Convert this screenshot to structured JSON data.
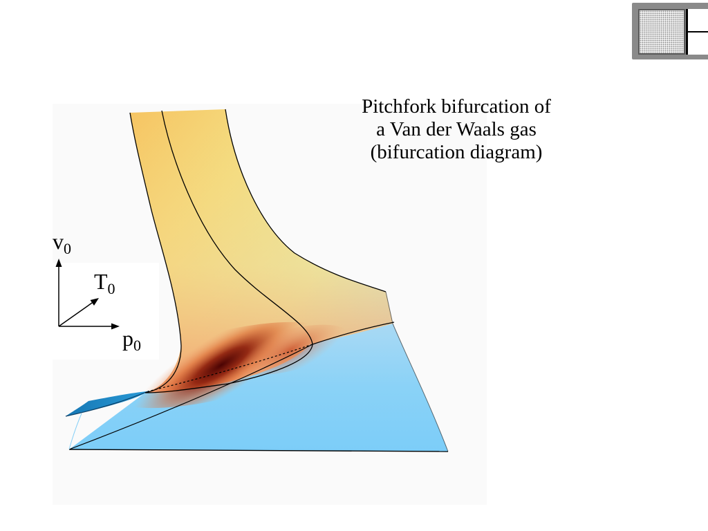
{
  "slide": {
    "title_lines": [
      "Pitchfork bifurcation of",
      "a Van der Waals gas",
      "(bifurcation diagram)"
    ]
  },
  "axes": {
    "v": {
      "symbol": "v",
      "subscript": "0"
    },
    "T": {
      "symbol": "T",
      "subscript": "0"
    },
    "p": {
      "symbol": "p",
      "subscript": "0"
    }
  },
  "nav": {
    "icon": "slide-navigation-icon"
  },
  "colors": {
    "surface_warm_light": "#f3e27a",
    "surface_orange": "#f6b45a",
    "surface_dark_red": "#5e0505",
    "surface_light_blue": "#86d0f7",
    "surface_teal": "#1a85c2",
    "curve": "#000000"
  }
}
